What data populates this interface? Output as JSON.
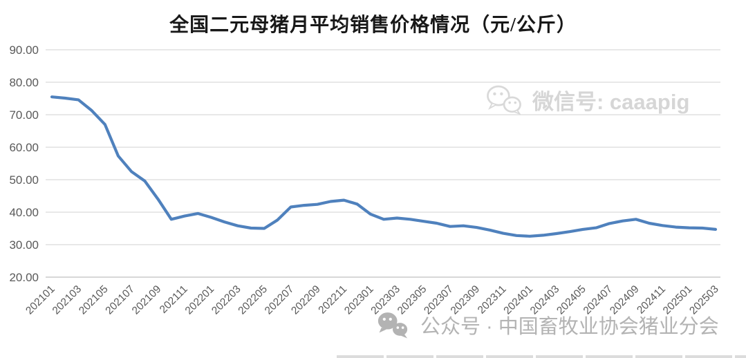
{
  "title": {
    "text": "全国二元母猪月平均销售价格情况（元/公斤）",
    "color": "#181818"
  },
  "watermarks": {
    "top": {
      "icon": "wechat-icon",
      "text": "微信号: caaapig",
      "color": "#d6d6d6"
    },
    "bottom": {
      "icon": "wechat-icon",
      "text": "公众号 · 中国畜牧业协会猪业分会",
      "color": "#b3b3b3"
    }
  },
  "chart_data": {
    "type": "line",
    "title": "全国二元母猪月平均销售价格情况（元/公斤）",
    "xlabel": "",
    "ylabel": "",
    "ylim": [
      20,
      90
    ],
    "ytick_step": 10,
    "ytick_decimals": 2,
    "x_label_every": 2,
    "x_label_rotation": -45,
    "grid": "horizontal-only",
    "legend": "none",
    "line_color": "#4f81bd",
    "gridline_color": "#d9d9d9",
    "axis_line_color": "#bfbfbf",
    "tick_label_color": "#595959",
    "categories": [
      "202101",
      "202102",
      "202103",
      "202104",
      "202105",
      "202106",
      "202107",
      "202108",
      "202109",
      "202110",
      "202111",
      "202112",
      "202201",
      "202202",
      "202203",
      "202204",
      "202205",
      "202206",
      "202207",
      "202208",
      "202209",
      "202210",
      "202211",
      "202212",
      "202301",
      "202302",
      "202303",
      "202304",
      "202305",
      "202306",
      "202307",
      "202308",
      "202309",
      "202310",
      "202311",
      "202312",
      "202401",
      "202402",
      "202403",
      "202404",
      "202405",
      "202406",
      "202407",
      "202408",
      "202409",
      "202410",
      "202411",
      "202412",
      "202501",
      "202502",
      "202503"
    ],
    "values": [
      75.5,
      75.1,
      74.6,
      71.3,
      67.0,
      57.3,
      52.5,
      49.6,
      44.0,
      37.8,
      38.8,
      39.6,
      38.4,
      37.0,
      35.8,
      35.1,
      35.0,
      37.6,
      41.6,
      42.1,
      42.4,
      43.3,
      43.7,
      42.5,
      39.4,
      37.8,
      38.2,
      37.8,
      37.2,
      36.6,
      35.6,
      35.8,
      35.3,
      34.5,
      33.5,
      32.8,
      32.6,
      32.9,
      33.4,
      34.0,
      34.7,
      35.2,
      36.5,
      37.3,
      37.8,
      36.6,
      35.9,
      35.4,
      35.2,
      35.1,
      34.7
    ]
  }
}
